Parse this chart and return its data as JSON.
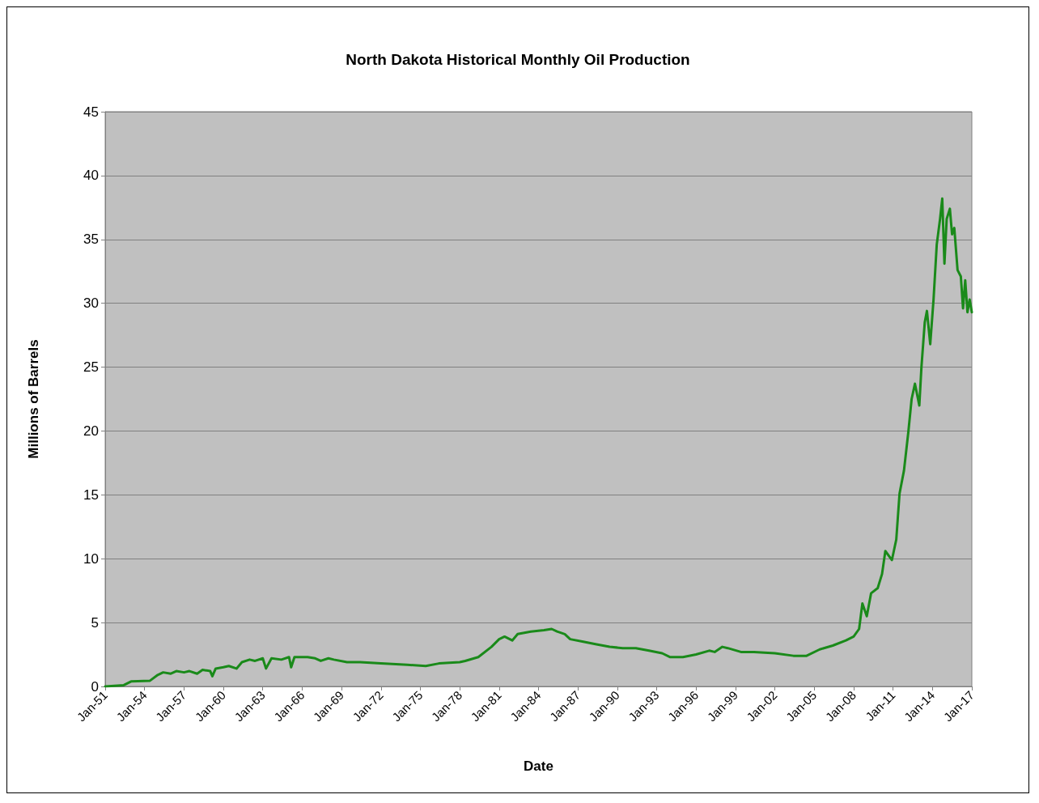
{
  "chart_data": {
    "type": "line",
    "title": "North Dakota Historical Monthly Oil Production",
    "xlabel": "Date",
    "ylabel": "Millions of Barrels",
    "x": [
      "1951-01",
      "1952-06",
      "1953-01",
      "1954-06",
      "1955-01",
      "1955-06",
      "1956-01",
      "1956-06",
      "1957-01",
      "1957-06",
      "1958-01",
      "1958-06",
      "1959-01",
      "1959-03",
      "1959-06",
      "1960-01",
      "1960-06",
      "1961-01",
      "1961-06",
      "1962-01",
      "1962-06",
      "1963-01",
      "1963-04",
      "1963-09",
      "1964-06",
      "1965-01",
      "1965-03",
      "1965-06",
      "1966-06",
      "1967-01",
      "1967-06",
      "1968-01",
      "1968-06",
      "1969-06",
      "1970-06",
      "1972-01",
      "1974-01",
      "1975-06",
      "1976-06",
      "1978-01",
      "1978-06",
      "1979-06",
      "1980-06",
      "1981-01",
      "1981-06",
      "1982-01",
      "1982-06",
      "1983-06",
      "1984-06",
      "1985-01",
      "1985-06",
      "1986-01",
      "1986-06",
      "1987-06",
      "1988-06",
      "1989-06",
      "1990-06",
      "1991-06",
      "1992-06",
      "1993-06",
      "1994-01",
      "1995-01",
      "1996-01",
      "1997-01",
      "1997-06",
      "1998-01",
      "1998-06",
      "1999-06",
      "2000-06",
      "2002-01",
      "2003-06",
      "2004-06",
      "2005-06",
      "2006-06",
      "2007-06",
      "2008-01",
      "2008-06",
      "2008-09",
      "2009-01",
      "2009-05",
      "2009-11",
      "2010-03",
      "2010-06",
      "2010-12",
      "2011-04",
      "2011-07",
      "2011-11",
      "2012-03",
      "2012-06",
      "2012-09",
      "2013-01",
      "2013-03",
      "2013-06",
      "2013-08",
      "2013-11",
      "2014-02",
      "2014-05",
      "2014-08",
      "2014-10",
      "2014-12",
      "2015-02",
      "2015-05",
      "2015-07",
      "2015-09",
      "2015-12",
      "2016-03",
      "2016-05",
      "2016-07",
      "2016-09",
      "2016-11",
      "2017-01"
    ],
    "series": [
      {
        "color": "#1a8a1a",
        "values": [
          0,
          0.1,
          0.4,
          0.45,
          0.9,
          1.1,
          1.0,
          1.2,
          1.1,
          1.2,
          1.0,
          1.3,
          1.2,
          0.8,
          1.4,
          1.5,
          1.6,
          1.4,
          1.9,
          2.1,
          2.0,
          2.2,
          1.4,
          2.2,
          2.1,
          2.3,
          1.5,
          2.3,
          2.3,
          2.2,
          2.0,
          2.2,
          2.1,
          1.9,
          1.9,
          1.8,
          1.7,
          1.6,
          1.8,
          1.9,
          2.0,
          2.3,
          3.1,
          3.7,
          3.9,
          3.6,
          4.1,
          4.3,
          4.4,
          4.5,
          4.3,
          4.1,
          3.7,
          3.5,
          3.3,
          3.1,
          3.0,
          3.0,
          2.8,
          2.6,
          2.3,
          2.3,
          2.5,
          2.8,
          2.7,
          3.1,
          3.0,
          2.7,
          2.7,
          2.6,
          2.4,
          2.4,
          2.9,
          3.2,
          3.6,
          3.9,
          4.5,
          6.5,
          5.5,
          7.3,
          7.7,
          8.8,
          10.6,
          9.9,
          11.5,
          15.1,
          16.9,
          19.9,
          22.5,
          23.7,
          22.0,
          25.0,
          28.5,
          29.4,
          26.8,
          30.3,
          34.6,
          36.6,
          38.2,
          33.1,
          36.6,
          37.4,
          35.4,
          35.9,
          32.6,
          32.1,
          29.6,
          31.8,
          29.3,
          30.3,
          29.3
        ]
      }
    ],
    "xlim": [
      "1951-01",
      "2017-01"
    ],
    "xticks": [
      {
        "value": "1951-01",
        "label": "Jan-51"
      },
      {
        "value": "1954-01",
        "label": "Jan-54"
      },
      {
        "value": "1957-01",
        "label": "Jan-57"
      },
      {
        "value": "1960-01",
        "label": "Jan-60"
      },
      {
        "value": "1963-01",
        "label": "Jan-63"
      },
      {
        "value": "1966-01",
        "label": "Jan-66"
      },
      {
        "value": "1969-01",
        "label": "Jan-69"
      },
      {
        "value": "1972-01",
        "label": "Jan-72"
      },
      {
        "value": "1975-01",
        "label": "Jan-75"
      },
      {
        "value": "1978-01",
        "label": "Jan-78"
      },
      {
        "value": "1981-01",
        "label": "Jan-81"
      },
      {
        "value": "1984-01",
        "label": "Jan-84"
      },
      {
        "value": "1987-01",
        "label": "Jan-87"
      },
      {
        "value": "1990-01",
        "label": "Jan-90"
      },
      {
        "value": "1993-01",
        "label": "Jan-93"
      },
      {
        "value": "1996-01",
        "label": "Jan-96"
      },
      {
        "value": "1999-01",
        "label": "Jan-99"
      },
      {
        "value": "2002-01",
        "label": "Jan-02"
      },
      {
        "value": "2005-01",
        "label": "Jan-05"
      },
      {
        "value": "2008-01",
        "label": "Jan-08"
      },
      {
        "value": "2011-01",
        "label": "Jan-11"
      },
      {
        "value": "2014-01",
        "label": "Jan-14"
      },
      {
        "value": "2017-01",
        "label": "Jan-17"
      }
    ],
    "ylim": [
      0,
      45
    ],
    "yticks": [
      0,
      5,
      10,
      15,
      20,
      25,
      30,
      35,
      40,
      45
    ],
    "grid": "y",
    "marker": "none",
    "line_style": "solid"
  }
}
